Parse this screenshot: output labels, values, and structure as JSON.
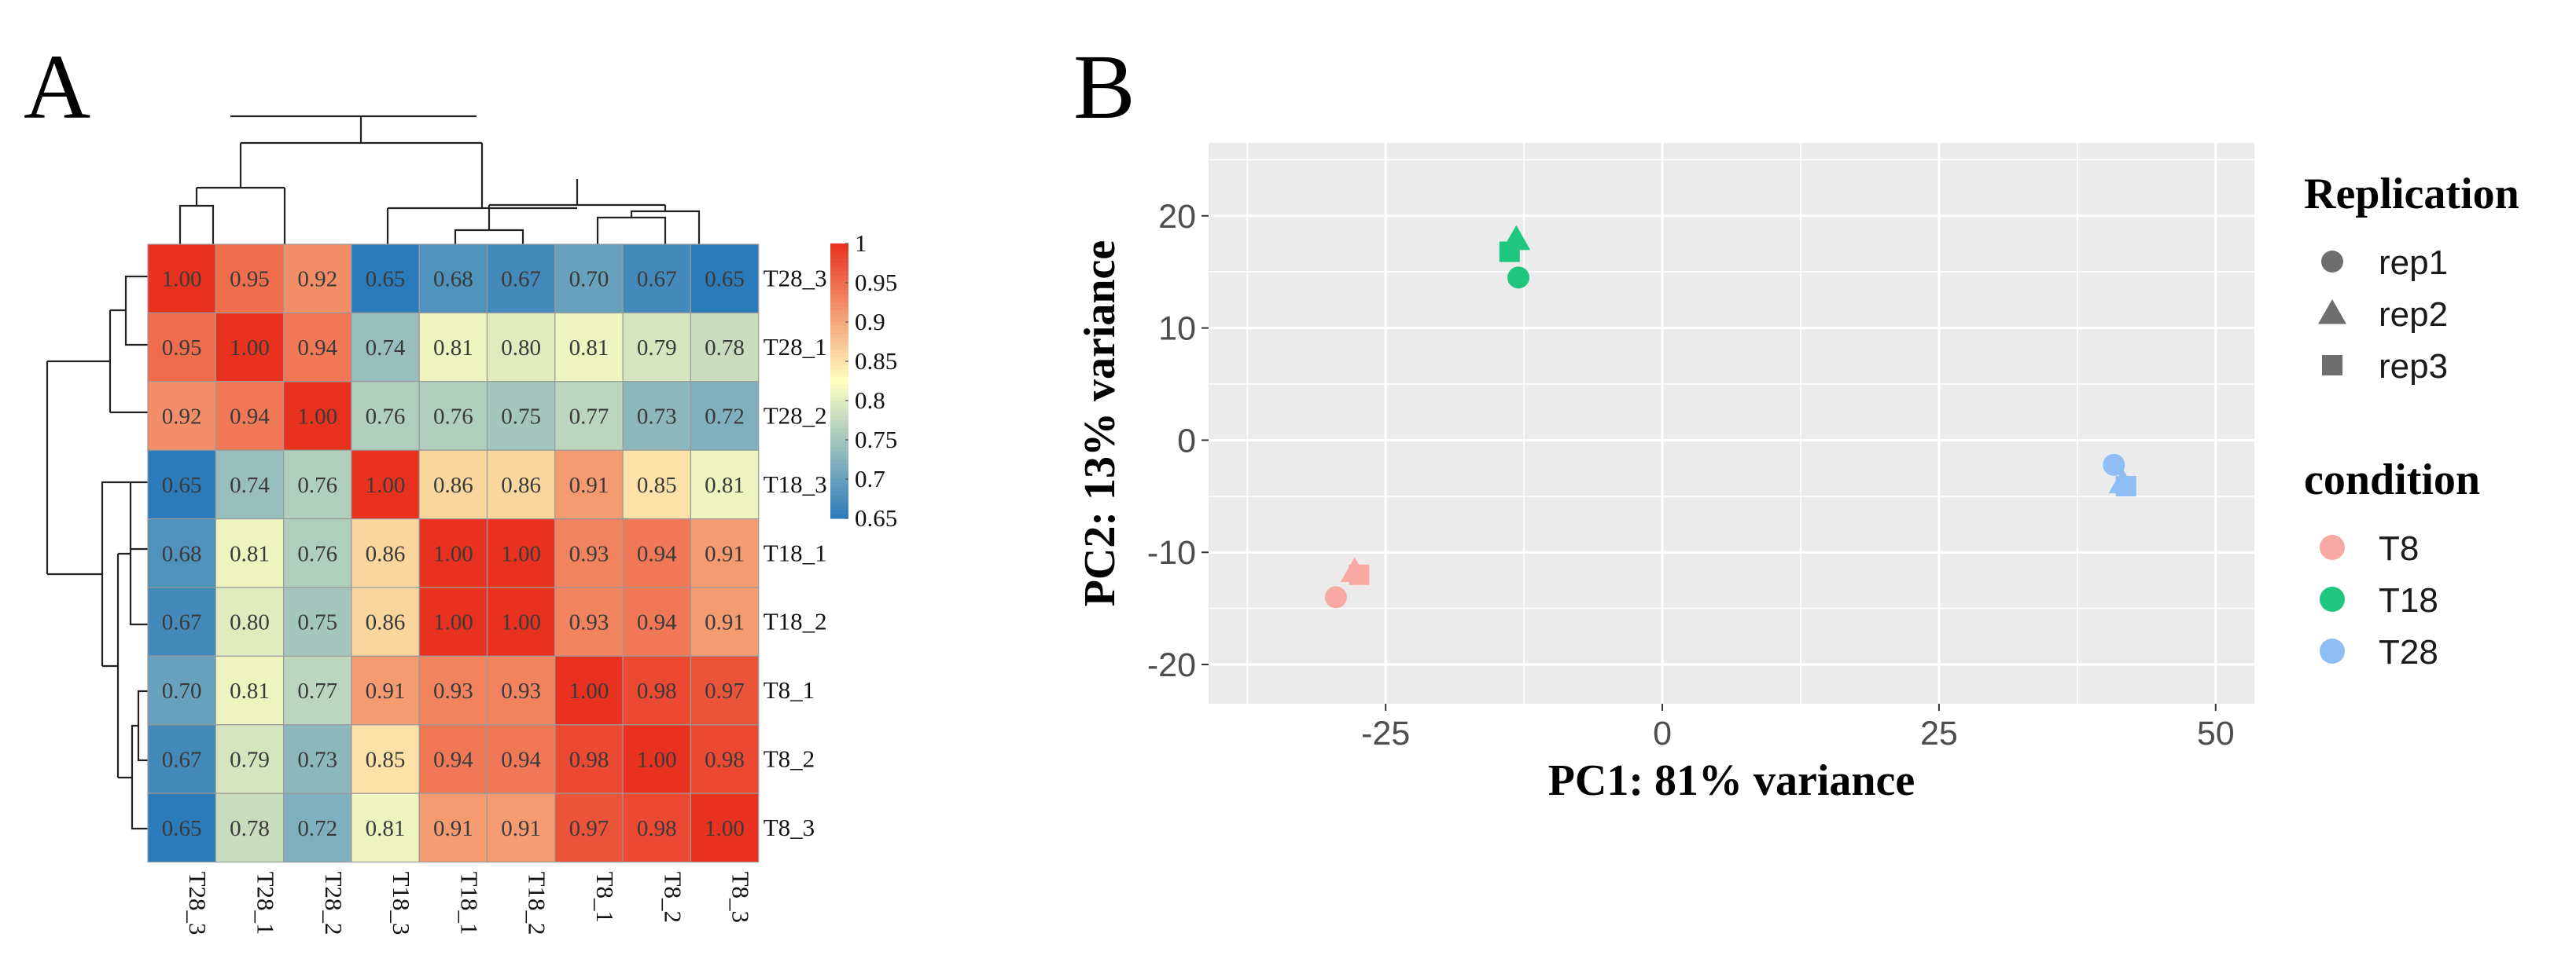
{
  "panel_a_label": "A",
  "panel_b_label": "B",
  "chart_data": [
    {
      "type": "heatmap",
      "title": "",
      "rows": [
        "T28_3",
        "T28_1",
        "T28_2",
        "T18_3",
        "T18_1",
        "T18_2",
        "T8_1",
        "T8_2",
        "T8_3"
      ],
      "cols": [
        "T28_3",
        "T28_1",
        "T28_2",
        "T18_3",
        "T18_1",
        "T18_2",
        "T8_1",
        "T8_2",
        "T8_3"
      ],
      "values": [
        [
          "1.00",
          "0.95",
          "0.92",
          "0.65",
          "0.68",
          "0.67",
          "0.70",
          "0.67",
          "0.65"
        ],
        [
          "0.95",
          "1.00",
          "0.94",
          "0.74",
          "0.81",
          "0.80",
          "0.81",
          "0.79",
          "0.78"
        ],
        [
          "0.92",
          "0.94",
          "1.00",
          "0.76",
          "0.76",
          "0.75",
          "0.77",
          "0.73",
          "0.72"
        ],
        [
          "0.65",
          "0.74",
          "0.76",
          "1.00",
          "0.86",
          "0.86",
          "0.91",
          "0.85",
          "0.81"
        ],
        [
          "0.68",
          "0.81",
          "0.76",
          "0.86",
          "1.00",
          "1.00",
          "0.93",
          "0.94",
          "0.91"
        ],
        [
          "0.67",
          "0.80",
          "0.75",
          "0.86",
          "1.00",
          "1.00",
          "0.93",
          "0.94",
          "0.91"
        ],
        [
          "0.70",
          "0.81",
          "0.77",
          "0.91",
          "0.93",
          "0.93",
          "1.00",
          "0.98",
          "0.97"
        ],
        [
          "0.67",
          "0.79",
          "0.73",
          "0.85",
          "0.94",
          "0.94",
          "0.98",
          "1.00",
          "0.98"
        ],
        [
          "0.65",
          "0.78",
          "0.72",
          "0.81",
          "0.91",
          "0.91",
          "0.97",
          "0.98",
          "1.00"
        ]
      ],
      "color_scale": {
        "min": 0.65,
        "max": 1.0,
        "low_color": "#2b7bbb",
        "mid_color": "#ffffbf",
        "high_color": "#e8311f"
      },
      "colorbar_ticks": [
        "1",
        "0.95",
        "0.9",
        "0.85",
        "0.8",
        "0.75",
        "0.7",
        "0.65"
      ],
      "clustering": "hierarchical dendrograms on rows and columns"
    },
    {
      "type": "scatter",
      "title": "",
      "xlabel": "PC1: 81% variance",
      "ylabel": "PC2: 13% variance",
      "xlim": [
        -41,
        53.5
      ],
      "ylim": [
        -23.5,
        26.5
      ],
      "xticks": [
        "-25",
        "0",
        "25",
        "50"
      ],
      "yticks": [
        "20",
        "10",
        "0",
        "-10",
        "-20"
      ],
      "points": [
        {
          "x": -29.5,
          "y": -14.0,
          "condition": "T8",
          "replication": "rep1"
        },
        {
          "x": -27.8,
          "y": -11.7,
          "condition": "T8",
          "replication": "rep2"
        },
        {
          "x": -27.4,
          "y": -12.0,
          "condition": "T8",
          "replication": "rep3"
        },
        {
          "x": -13.0,
          "y": 14.5,
          "condition": "T18",
          "replication": "rep1"
        },
        {
          "x": -13.2,
          "y": 17.9,
          "condition": "T18",
          "replication": "rep2"
        },
        {
          "x": -13.8,
          "y": 16.8,
          "condition": "T18",
          "replication": "rep3"
        },
        {
          "x": 40.8,
          "y": -2.2,
          "condition": "T28",
          "replication": "rep1"
        },
        {
          "x": 41.6,
          "y": -3.8,
          "condition": "T28",
          "replication": "rep2"
        },
        {
          "x": 41.9,
          "y": -4.1,
          "condition": "T28",
          "replication": "rep3"
        }
      ],
      "legend_shape": {
        "title": "Replication",
        "items": [
          {
            "label": "rep1",
            "shape": "circle"
          },
          {
            "label": "rep2",
            "shape": "triangle"
          },
          {
            "label": "rep3",
            "shape": "square"
          }
        ]
      },
      "legend_color": {
        "title": "condition",
        "items": [
          {
            "label": "T8",
            "color": "#f8a9a3"
          },
          {
            "label": "T18",
            "color": "#1fc77e"
          },
          {
            "label": "T28",
            "color": "#8fbdf5"
          }
        ]
      },
      "panel_background": "#ebebeb",
      "grid_color": "#ffffff"
    }
  ]
}
